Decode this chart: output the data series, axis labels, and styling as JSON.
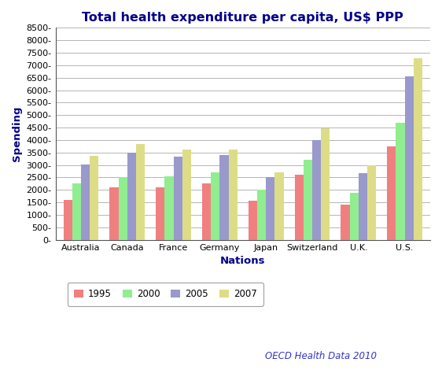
{
  "title": "Total health expenditure per capita, US$ PPP",
  "xlabel": "Nations",
  "ylabel": "Spending",
  "categories": [
    "Australia",
    "Canada",
    "France",
    "Germany",
    "Japan",
    "Switzerland",
    "U.K.",
    "U.S."
  ],
  "series": {
    "1995": [
      1600,
      2100,
      2100,
      2250,
      1570,
      2600,
      1400,
      3750
    ],
    "2000": [
      2250,
      2530,
      2560,
      2700,
      2000,
      3220,
      1870,
      4700
    ],
    "2005": [
      3020,
      3480,
      3340,
      3400,
      2530,
      4010,
      2680,
      6550
    ],
    "2007": [
      3370,
      3850,
      3620,
      3620,
      2720,
      4470,
      2990,
      7290
    ]
  },
  "bar_colors": {
    "1995": "#f08080",
    "2000": "#90ee90",
    "2005": "#9999cc",
    "2007": "#dddd88"
  },
  "legend_labels": [
    "1995",
    "2000",
    "2005",
    "2007"
  ],
  "ylim": [
    0,
    8500
  ],
  "yticks": [
    0,
    500,
    1000,
    1500,
    2000,
    2500,
    3000,
    3500,
    4000,
    4500,
    5000,
    5500,
    6000,
    6500,
    7000,
    7500,
    8000,
    8500
  ],
  "annotation": "OECD Health Data 2010",
  "annotation_color": "#3333cc",
  "background_color": "#ffffff",
  "plot_background": "#ffffff",
  "grid_color": "#aaaaaa",
  "title_color": "#00008b",
  "title_fontsize": 11.5,
  "axis_label_color": "#00008b",
  "axis_label_fontsize": 9.5,
  "tick_label_color": "#000000",
  "tick_label_fontsize": 8,
  "legend_border_color": "#888888",
  "bar_width": 0.19
}
